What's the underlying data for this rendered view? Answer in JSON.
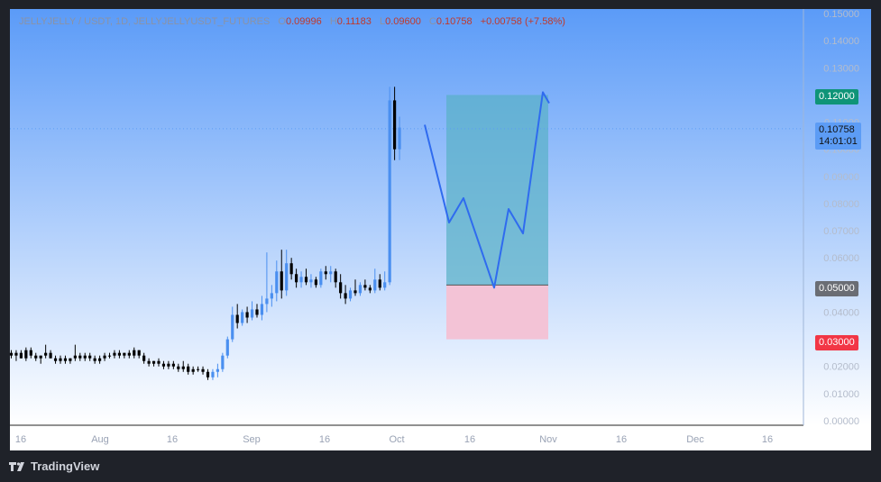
{
  "header": {
    "symbol": "JELLYJELLY / USDT, 1D, JELLYJELLYUSDT_FUTURES",
    "o_label": "O",
    "o_value": "0.09996",
    "h_label": "H",
    "h_value": "0.11183",
    "l_label": "L",
    "l_value": "0.09600",
    "c_label": "C",
    "c_value": "0.10758",
    "change": "+0.00758 (+7.58%)"
  },
  "footer": {
    "brand": "TradingView"
  },
  "colors": {
    "bg_top": "#5b9bf8",
    "bg_bottom": "#ffffff",
    "candle": "#000000",
    "candle_up": "#4a8ff0",
    "arrow": "#2f6bef",
    "profit_zone": "#58b1c6",
    "loss_zone": "#f3c3d6",
    "target_tag": "#0f9478",
    "entry_tag": "#6a6d74",
    "stop_tag": "#f23645",
    "current_tag": "#5c9cf5"
  },
  "chart_data": {
    "type": "candlestick",
    "title": "JELLYJELLY / USDT, 1D, JELLYJELLYUSDT_FUTURES",
    "ylim": [
      0,
      0.15
    ],
    "y_ticks": [
      "0.15000",
      "0.14000",
      "0.13000",
      "0.12000",
      "0.11000",
      "0.10000",
      "0.09000",
      "0.08000",
      "0.07000",
      "0.06000",
      "0.05000",
      "0.04000",
      "0.03000",
      "0.02000",
      "0.01000",
      "0.00000"
    ],
    "x_ticks": [
      "16",
      "Aug",
      "16",
      "Sep",
      "16",
      "Oct",
      "16",
      "Nov",
      "16",
      "Dec",
      "16"
    ],
    "last_price": {
      "price": "0.10758",
      "countdown": "14:01:01"
    },
    "trade_setup": {
      "target": "0.12000",
      "entry": "0.05000",
      "stop": "0.03000"
    },
    "projected_path": [
      0.109,
      0.073,
      0.082,
      0.049,
      0.078,
      0.069,
      0.121,
      0.117
    ],
    "candles": [
      [
        0.025,
        0.026,
        0.023,
        0.024
      ],
      [
        0.024,
        0.026,
        0.022,
        0.025
      ],
      [
        0.025,
        0.026,
        0.023,
        0.023
      ],
      [
        0.023,
        0.027,
        0.022,
        0.026
      ],
      [
        0.026,
        0.027,
        0.023,
        0.024
      ],
      [
        0.024,
        0.025,
        0.022,
        0.023
      ],
      [
        0.023,
        0.024,
        0.021,
        0.024
      ],
      [
        0.024,
        0.028,
        0.023,
        0.025
      ],
      [
        0.025,
        0.026,
        0.023,
        0.023
      ],
      [
        0.023,
        0.024,
        0.021,
        0.022
      ],
      [
        0.022,
        0.024,
        0.021,
        0.023
      ],
      [
        0.023,
        0.024,
        0.021,
        0.022
      ],
      [
        0.022,
        0.023,
        0.021,
        0.023
      ],
      [
        0.023,
        0.028,
        0.022,
        0.024
      ],
      [
        0.024,
        0.025,
        0.022,
        0.023
      ],
      [
        0.023,
        0.025,
        0.022,
        0.024
      ],
      [
        0.024,
        0.025,
        0.022,
        0.023
      ],
      [
        0.023,
        0.024,
        0.021,
        0.022
      ],
      [
        0.022,
        0.024,
        0.021,
        0.023
      ],
      [
        0.023,
        0.025,
        0.022,
        0.024
      ],
      [
        0.024,
        0.025,
        0.023,
        0.024
      ],
      [
        0.024,
        0.026,
        0.023,
        0.025
      ],
      [
        0.025,
        0.026,
        0.023,
        0.024
      ],
      [
        0.024,
        0.025,
        0.023,
        0.025
      ],
      [
        0.025,
        0.026,
        0.023,
        0.024
      ],
      [
        0.024,
        0.027,
        0.023,
        0.026
      ],
      [
        0.026,
        0.026,
        0.023,
        0.024
      ],
      [
        0.024,
        0.025,
        0.021,
        0.022
      ],
      [
        0.022,
        0.023,
        0.02,
        0.021
      ],
      [
        0.021,
        0.022,
        0.02,
        0.022
      ],
      [
        0.022,
        0.023,
        0.02,
        0.021
      ],
      [
        0.021,
        0.022,
        0.019,
        0.02
      ],
      [
        0.02,
        0.022,
        0.019,
        0.021
      ],
      [
        0.021,
        0.022,
        0.019,
        0.02
      ],
      [
        0.02,
        0.021,
        0.018,
        0.019
      ],
      [
        0.019,
        0.022,
        0.018,
        0.02
      ],
      [
        0.02,
        0.021,
        0.017,
        0.018
      ],
      [
        0.018,
        0.02,
        0.017,
        0.019
      ],
      [
        0.019,
        0.02,
        0.018,
        0.019
      ],
      [
        0.019,
        0.02,
        0.017,
        0.018
      ],
      [
        0.018,
        0.019,
        0.015,
        0.016
      ],
      [
        0.016,
        0.019,
        0.015,
        0.018
      ],
      [
        0.018,
        0.021,
        0.016,
        0.019
      ],
      [
        0.019,
        0.025,
        0.018,
        0.024
      ],
      [
        0.024,
        0.031,
        0.023,
        0.03
      ],
      [
        0.03,
        0.042,
        0.029,
        0.039
      ],
      [
        0.039,
        0.043,
        0.034,
        0.036
      ],
      [
        0.036,
        0.041,
        0.035,
        0.04
      ],
      [
        0.04,
        0.042,
        0.036,
        0.038
      ],
      [
        0.038,
        0.044,
        0.037,
        0.041
      ],
      [
        0.041,
        0.043,
        0.038,
        0.039
      ],
      [
        0.039,
        0.046,
        0.037,
        0.043
      ],
      [
        0.043,
        0.062,
        0.04,
        0.045
      ],
      [
        0.045,
        0.05,
        0.042,
        0.047
      ],
      [
        0.047,
        0.059,
        0.044,
        0.055
      ],
      [
        0.055,
        0.063,
        0.045,
        0.048
      ],
      [
        0.048,
        0.063,
        0.046,
        0.058
      ],
      [
        0.058,
        0.06,
        0.052,
        0.054
      ],
      [
        0.054,
        0.056,
        0.049,
        0.051
      ],
      [
        0.051,
        0.055,
        0.049,
        0.053
      ],
      [
        0.053,
        0.056,
        0.05,
        0.051
      ],
      [
        0.051,
        0.054,
        0.049,
        0.052
      ],
      [
        0.052,
        0.053,
        0.049,
        0.05
      ],
      [
        0.05,
        0.056,
        0.049,
        0.055
      ],
      [
        0.055,
        0.057,
        0.052,
        0.054
      ],
      [
        0.054,
        0.057,
        0.051,
        0.055
      ],
      [
        0.055,
        0.056,
        0.049,
        0.051
      ],
      [
        0.051,
        0.054,
        0.045,
        0.047
      ],
      [
        0.047,
        0.05,
        0.043,
        0.045
      ],
      [
        0.045,
        0.049,
        0.044,
        0.048
      ],
      [
        0.048,
        0.052,
        0.046,
        0.047
      ],
      [
        0.047,
        0.051,
        0.046,
        0.05
      ],
      [
        0.05,
        0.052,
        0.048,
        0.049
      ],
      [
        0.049,
        0.05,
        0.047,
        0.048
      ],
      [
        0.048,
        0.056,
        0.047,
        0.052
      ],
      [
        0.052,
        0.054,
        0.048,
        0.049
      ],
      [
        0.049,
        0.055,
        0.048,
        0.051
      ],
      [
        0.051,
        0.123,
        0.05,
        0.118
      ],
      [
        0.118,
        0.123,
        0.096,
        0.1
      ],
      [
        0.1,
        0.112,
        0.096,
        0.108
      ]
    ]
  }
}
